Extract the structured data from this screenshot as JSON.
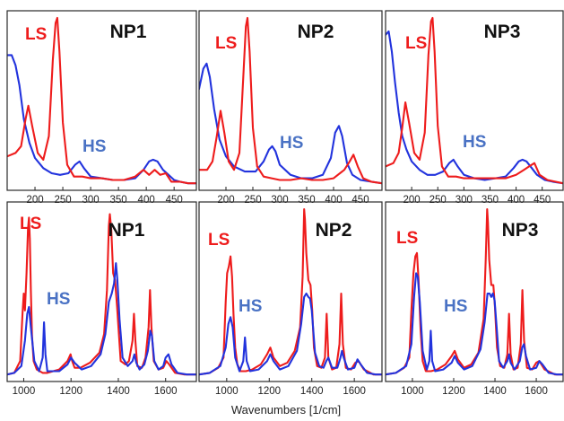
{
  "colors": {
    "ls": "#ee1c1c",
    "hs": "#2233dd",
    "ls_label": "#ee1c1c",
    "hs_label": "#4a72c4"
  },
  "xlabel": "Wavenumbers [1/cm]",
  "chart_data": [
    {
      "type": "line",
      "title": "NP1",
      "ls_label": "LS",
      "hs_label": "HS",
      "xlim": [
        150,
        490
      ],
      "ylim": [
        0,
        1
      ],
      "xticks": [
        200,
        250,
        300,
        350,
        400,
        450
      ],
      "series": [
        {
          "name": "LS",
          "x": [
            150,
            165,
            175,
            183,
            188,
            195,
            205,
            215,
            225,
            232,
            237,
            240,
            244,
            250,
            258,
            270,
            285,
            300,
            320,
            340,
            360,
            380,
            395,
            405,
            415,
            425,
            435,
            445,
            460,
            475,
            490
          ],
          "y": [
            0.18,
            0.2,
            0.24,
            0.4,
            0.48,
            0.36,
            0.2,
            0.16,
            0.3,
            0.75,
            0.97,
            1.0,
            0.8,
            0.38,
            0.13,
            0.06,
            0.06,
            0.05,
            0.05,
            0.04,
            0.04,
            0.06,
            0.1,
            0.07,
            0.1,
            0.07,
            0.08,
            0.03,
            0.03,
            0.02,
            0.02
          ]
        },
        {
          "name": "HS",
          "x": [
            150,
            158,
            165,
            172,
            180,
            190,
            200,
            215,
            230,
            245,
            260,
            272,
            280,
            288,
            300,
            320,
            340,
            360,
            380,
            395,
            405,
            412,
            420,
            430,
            440,
            450,
            460,
            475,
            490
          ],
          "y": [
            0.78,
            0.78,
            0.72,
            0.6,
            0.4,
            0.26,
            0.17,
            0.11,
            0.08,
            0.07,
            0.08,
            0.13,
            0.15,
            0.11,
            0.06,
            0.05,
            0.04,
            0.04,
            0.05,
            0.1,
            0.15,
            0.16,
            0.15,
            0.1,
            0.07,
            0.04,
            0.03,
            0.02,
            0.02
          ]
        }
      ]
    },
    {
      "type": "line",
      "title": "NP2",
      "ls_label": "LS",
      "hs_label": "HS",
      "xlim": [
        150,
        490
      ],
      "ylim": [
        0,
        1
      ],
      "xticks": [
        200,
        250,
        300,
        350,
        400,
        450
      ],
      "series": [
        {
          "name": "LS",
          "x": [
            150,
            165,
            175,
            183,
            190,
            197,
            205,
            215,
            225,
            233,
            237,
            240,
            244,
            250,
            258,
            270,
            285,
            300,
            320,
            340,
            360,
            380,
            400,
            420,
            430,
            437,
            445,
            455,
            470,
            490
          ],
          "y": [
            0.1,
            0.1,
            0.15,
            0.3,
            0.45,
            0.32,
            0.15,
            0.1,
            0.2,
            0.7,
            0.95,
            1.0,
            0.8,
            0.35,
            0.12,
            0.06,
            0.05,
            0.04,
            0.04,
            0.05,
            0.04,
            0.04,
            0.05,
            0.1,
            0.15,
            0.19,
            0.12,
            0.05,
            0.03,
            0.02
          ]
        },
        {
          "name": "HS",
          "x": [
            150,
            158,
            164,
            170,
            178,
            188,
            200,
            215,
            235,
            255,
            270,
            280,
            286,
            292,
            300,
            320,
            340,
            360,
            380,
            395,
            403,
            410,
            416,
            425,
            435,
            450,
            470,
            490
          ],
          "y": [
            0.58,
            0.7,
            0.73,
            0.65,
            0.46,
            0.28,
            0.18,
            0.12,
            0.09,
            0.09,
            0.15,
            0.22,
            0.24,
            0.21,
            0.13,
            0.07,
            0.05,
            0.05,
            0.07,
            0.17,
            0.32,
            0.36,
            0.3,
            0.14,
            0.07,
            0.04,
            0.03,
            0.02
          ]
        }
      ]
    },
    {
      "type": "line",
      "title": "NP3",
      "ls_label": "LS",
      "hs_label": "HS",
      "xlim": [
        150,
        490
      ],
      "ylim": [
        0,
        1
      ],
      "xticks": [
        200,
        250,
        300,
        350,
        400,
        450
      ],
      "series": [
        {
          "name": "LS",
          "x": [
            150,
            165,
            175,
            182,
            188,
            195,
            205,
            215,
            225,
            232,
            237,
            240,
            244,
            250,
            258,
            270,
            285,
            300,
            320,
            340,
            360,
            380,
            400,
            415,
            425,
            435,
            445,
            460,
            475,
            490
          ],
          "y": [
            0.12,
            0.14,
            0.2,
            0.35,
            0.5,
            0.38,
            0.2,
            0.16,
            0.32,
            0.78,
            0.98,
            1.0,
            0.8,
            0.36,
            0.12,
            0.06,
            0.06,
            0.05,
            0.05,
            0.05,
            0.05,
            0.05,
            0.07,
            0.1,
            0.12,
            0.14,
            0.07,
            0.04,
            0.03,
            0.02
          ]
        },
        {
          "name": "HS",
          "x": [
            150,
            156,
            162,
            168,
            175,
            182,
            190,
            200,
            215,
            230,
            245,
            260,
            272,
            280,
            288,
            300,
            320,
            340,
            360,
            380,
            395,
            405,
            412,
            420,
            430,
            440,
            455,
            470,
            490
          ],
          "y": [
            0.9,
            0.92,
            0.8,
            0.62,
            0.44,
            0.3,
            0.22,
            0.15,
            0.1,
            0.07,
            0.07,
            0.09,
            0.14,
            0.16,
            0.12,
            0.07,
            0.05,
            0.04,
            0.05,
            0.06,
            0.11,
            0.15,
            0.16,
            0.15,
            0.11,
            0.07,
            0.04,
            0.03,
            0.02
          ]
        }
      ]
    },
    {
      "type": "line",
      "title": "NP1",
      "ls_label": "LS",
      "hs_label": "HS",
      "xlim": [
        930,
        1730
      ],
      "ylim": [
        0,
        1
      ],
      "xticks": [
        1000,
        1200,
        1400,
        1600
      ],
      "series": [
        {
          "name": "LS",
          "x": [
            930,
            960,
            985,
            995,
            1000,
            1005,
            1012,
            1018,
            1022,
            1026,
            1030,
            1035,
            1042,
            1055,
            1080,
            1100,
            1150,
            1185,
            1198,
            1205,
            1215,
            1240,
            1280,
            1320,
            1340,
            1352,
            1360,
            1364,
            1370,
            1378,
            1386,
            1395,
            1410,
            1430,
            1445,
            1460,
            1466,
            1472,
            1480,
            1500,
            1515,
            1528,
            1534,
            1540,
            1550,
            1570,
            1590,
            1603,
            1615,
            1640,
            1680,
            1730
          ],
          "y": [
            0.02,
            0.03,
            0.1,
            0.38,
            0.5,
            0.4,
            0.62,
            0.88,
            0.95,
            0.82,
            0.52,
            0.25,
            0.1,
            0.05,
            0.03,
            0.03,
            0.05,
            0.1,
            0.14,
            0.1,
            0.06,
            0.06,
            0.09,
            0.15,
            0.26,
            0.52,
            0.9,
            0.97,
            0.88,
            0.62,
            0.58,
            0.42,
            0.1,
            0.08,
            0.1,
            0.22,
            0.38,
            0.22,
            0.07,
            0.06,
            0.12,
            0.3,
            0.52,
            0.3,
            0.1,
            0.05,
            0.06,
            0.1,
            0.08,
            0.03,
            0.02,
            0.02
          ]
        },
        {
          "name": "HS",
          "x": [
            930,
            960,
            990,
            1005,
            1015,
            1022,
            1030,
            1045,
            1065,
            1080,
            1086,
            1092,
            1100,
            1150,
            1185,
            1200,
            1215,
            1245,
            1285,
            1325,
            1345,
            1360,
            1372,
            1382,
            1390,
            1396,
            1405,
            1418,
            1440,
            1460,
            1468,
            1476,
            1490,
            1510,
            1525,
            1535,
            1542,
            1552,
            1570,
            1590,
            1600,
            1612,
            1625,
            1650,
            1690,
            1730
          ],
          "y": [
            0.02,
            0.03,
            0.07,
            0.22,
            0.38,
            0.42,
            0.3,
            0.1,
            0.04,
            0.12,
            0.33,
            0.14,
            0.04,
            0.04,
            0.08,
            0.12,
            0.09,
            0.05,
            0.07,
            0.14,
            0.26,
            0.45,
            0.5,
            0.56,
            0.68,
            0.58,
            0.35,
            0.12,
            0.07,
            0.1,
            0.14,
            0.09,
            0.05,
            0.08,
            0.16,
            0.28,
            0.25,
            0.1,
            0.05,
            0.07,
            0.12,
            0.14,
            0.08,
            0.03,
            0.02,
            0.02
          ]
        }
      ]
    },
    {
      "type": "line",
      "title": "NP2",
      "ls_label": "LS",
      "hs_label": "HS",
      "xlim": [
        870,
        1730
      ],
      "ylim": [
        0,
        1
      ],
      "xticks": [
        1000,
        1200,
        1400,
        1600
      ],
      "series": [
        {
          "name": "LS",
          "x": [
            870,
            920,
            960,
            985,
            995,
            1002,
            1010,
            1018,
            1025,
            1032,
            1040,
            1050,
            1065,
            1090,
            1120,
            1160,
            1190,
            1205,
            1220,
            1250,
            1285,
            1320,
            1345,
            1357,
            1364,
            1368,
            1374,
            1384,
            1394,
            1402,
            1410,
            1425,
            1445,
            1462,
            1470,
            1478,
            1495,
            1515,
            1530,
            1538,
            1546,
            1560,
            1585,
            1605,
            1620,
            1645,
            1690,
            1730
          ],
          "y": [
            0.02,
            0.03,
            0.06,
            0.12,
            0.45,
            0.62,
            0.66,
            0.72,
            0.6,
            0.38,
            0.18,
            0.08,
            0.04,
            0.04,
            0.05,
            0.08,
            0.14,
            0.18,
            0.12,
            0.07,
            0.09,
            0.16,
            0.3,
            0.6,
            1.0,
            0.94,
            0.74,
            0.58,
            0.55,
            0.4,
            0.18,
            0.07,
            0.06,
            0.12,
            0.38,
            0.12,
            0.05,
            0.06,
            0.2,
            0.5,
            0.2,
            0.06,
            0.05,
            0.09,
            0.1,
            0.05,
            0.02,
            0.02
          ]
        },
        {
          "name": "HS",
          "x": [
            870,
            920,
            970,
            995,
            1008,
            1018,
            1028,
            1040,
            1060,
            1078,
            1086,
            1094,
            1110,
            1150,
            1190,
            1205,
            1220,
            1250,
            1290,
            1330,
            1350,
            1364,
            1374,
            1384,
            1392,
            1400,
            1415,
            1435,
            1455,
            1468,
            1478,
            1495,
            1520,
            1535,
            1542,
            1550,
            1570,
            1600,
            1615,
            1630,
            1660,
            1700,
            1730
          ],
          "y": [
            0.02,
            0.03,
            0.07,
            0.18,
            0.32,
            0.36,
            0.3,
            0.12,
            0.04,
            0.1,
            0.24,
            0.1,
            0.04,
            0.05,
            0.1,
            0.14,
            0.1,
            0.05,
            0.07,
            0.16,
            0.32,
            0.48,
            0.5,
            0.48,
            0.47,
            0.4,
            0.15,
            0.07,
            0.06,
            0.1,
            0.12,
            0.06,
            0.06,
            0.12,
            0.16,
            0.12,
            0.05,
            0.06,
            0.11,
            0.08,
            0.03,
            0.02,
            0.02
          ]
        }
      ]
    },
    {
      "type": "line",
      "title": "NP3",
      "ls_label": "LS",
      "hs_label": "HS",
      "xlim": [
        870,
        1730
      ],
      "ylim": [
        0,
        1
      ],
      "xticks": [
        1000,
        1200,
        1400,
        1600
      ],
      "series": [
        {
          "name": "LS",
          "x": [
            870,
            920,
            960,
            985,
            995,
            1005,
            1014,
            1022,
            1030,
            1040,
            1050,
            1065,
            1090,
            1120,
            1160,
            1190,
            1205,
            1220,
            1250,
            1285,
            1320,
            1345,
            1355,
            1362,
            1366,
            1372,
            1382,
            1392,
            1400,
            1410,
            1425,
            1445,
            1460,
            1468,
            1476,
            1490,
            1510,
            1525,
            1533,
            1541,
            1555,
            1580,
            1600,
            1615,
            1640,
            1690,
            1730
          ],
          "y": [
            0.02,
            0.03,
            0.06,
            0.12,
            0.4,
            0.62,
            0.72,
            0.74,
            0.58,
            0.28,
            0.1,
            0.04,
            0.04,
            0.05,
            0.08,
            0.13,
            0.16,
            0.11,
            0.06,
            0.08,
            0.15,
            0.35,
            0.7,
            1.0,
            0.92,
            0.7,
            0.55,
            0.55,
            0.42,
            0.18,
            0.07,
            0.06,
            0.14,
            0.38,
            0.14,
            0.05,
            0.06,
            0.2,
            0.52,
            0.22,
            0.06,
            0.05,
            0.09,
            0.1,
            0.05,
            0.02,
            0.02
          ]
        },
        {
          "name": "HS",
          "x": [
            870,
            920,
            970,
            995,
            1008,
            1018,
            1026,
            1036,
            1050,
            1070,
            1082,
            1089,
            1096,
            1110,
            1150,
            1190,
            1205,
            1220,
            1250,
            1290,
            1330,
            1350,
            1364,
            1374,
            1382,
            1390,
            1398,
            1408,
            1420,
            1440,
            1460,
            1468,
            1476,
            1495,
            1520,
            1532,
            1540,
            1550,
            1570,
            1600,
            1615,
            1630,
            1660,
            1700,
            1730
          ],
          "y": [
            0.02,
            0.03,
            0.07,
            0.2,
            0.48,
            0.62,
            0.6,
            0.45,
            0.16,
            0.05,
            0.1,
            0.28,
            0.1,
            0.04,
            0.05,
            0.09,
            0.13,
            0.09,
            0.05,
            0.07,
            0.17,
            0.33,
            0.5,
            0.5,
            0.48,
            0.5,
            0.46,
            0.3,
            0.1,
            0.06,
            0.1,
            0.14,
            0.09,
            0.05,
            0.1,
            0.18,
            0.2,
            0.13,
            0.05,
            0.06,
            0.1,
            0.08,
            0.03,
            0.02,
            0.02
          ]
        }
      ]
    }
  ]
}
